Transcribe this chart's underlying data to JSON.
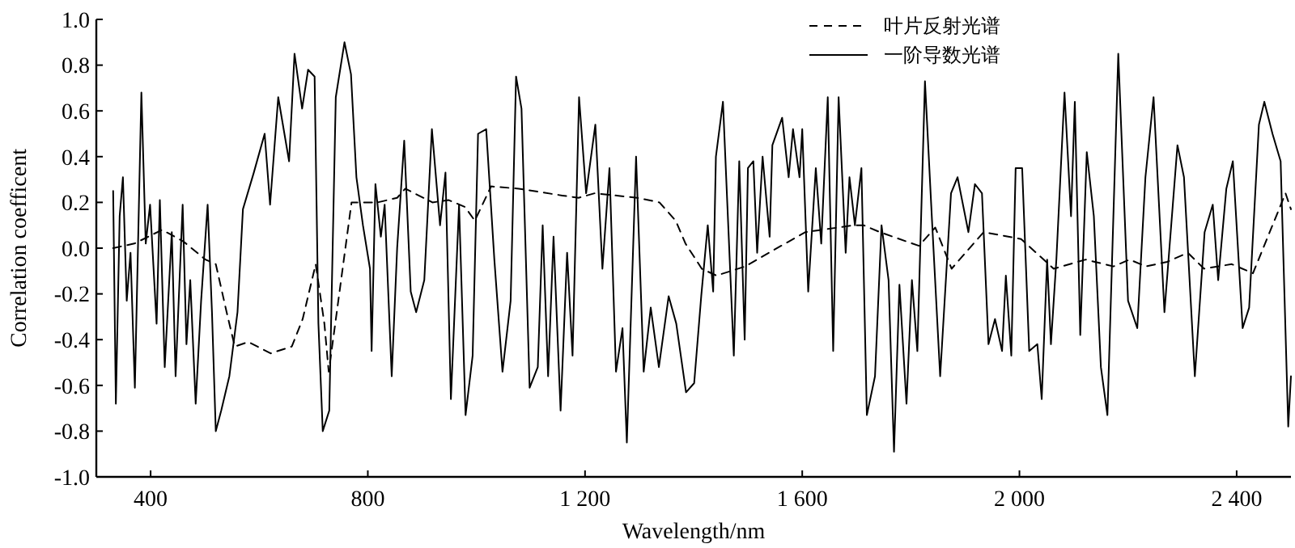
{
  "chart_data": {
    "type": "line",
    "xlabel": "Wavelength/nm",
    "ylabel": "Correlation coefficent",
    "xlim": [
      300,
      2500
    ],
    "xticks": [
      {
        "value": 400,
        "label": "400"
      },
      {
        "value": 800,
        "label": "800"
      },
      {
        "value": 1200,
        "label": "1 200"
      },
      {
        "value": 1600,
        "label": "1 600"
      },
      {
        "value": 2000,
        "label": "2 000"
      },
      {
        "value": 2400,
        "label": "2 400"
      }
    ],
    "ylim": [
      -1,
      1
    ],
    "yticks": [
      {
        "value": -1,
        "label": "-1.0"
      },
      {
        "value": -0.8,
        "label": "-0.8"
      },
      {
        "value": -0.6,
        "label": "-0.6"
      },
      {
        "value": -0.4,
        "label": "-0.4"
      },
      {
        "value": -0.2,
        "label": "-0.2"
      },
      {
        "value": 0,
        "label": "0.0"
      },
      {
        "value": 0.2,
        "label": "0.2"
      },
      {
        "value": 0.4,
        "label": "0.4"
      },
      {
        "value": 0.6,
        "label": "0.6"
      },
      {
        "value": 0.8,
        "label": "0.8"
      },
      {
        "value": 1,
        "label": "1.0"
      }
    ],
    "grid": false,
    "legend": "top right",
    "series": [
      {
        "name": "叶片反射光谱",
        "color": "#000000",
        "line_style": "dashed",
        "x": [
          331,
          370,
          421,
          460,
          501,
          520,
          540,
          555,
          580,
          621,
          660,
          680,
          704,
          720,
          728,
          740,
          770,
          818,
          854,
          869,
          919,
          949,
          979,
          997,
          1027,
          1078,
          1158,
          1188,
          1218,
          1296,
          1337,
          1367,
          1385,
          1415,
          1442,
          1495,
          1546,
          1606,
          1695,
          1713,
          1743,
          1815,
          1845,
          1875,
          1934,
          2003,
          2063,
          2122,
          2173,
          2203,
          2233,
          2272,
          2310,
          2340,
          2391,
          2430,
          2490,
          2500
        ],
        "values": [
          0.0,
          0.02,
          0.08,
          0.03,
          -0.05,
          -0.07,
          -0.28,
          -0.43,
          -0.41,
          -0.46,
          -0.43,
          -0.31,
          -0.07,
          -0.33,
          -0.54,
          -0.33,
          0.2,
          0.2,
          0.22,
          0.26,
          0.2,
          0.21,
          0.18,
          0.12,
          0.27,
          0.26,
          0.23,
          0.22,
          0.24,
          0.22,
          0.2,
          0.12,
          0.02,
          -0.09,
          -0.12,
          -0.08,
          -0.01,
          0.07,
          0.1,
          0.1,
          0.07,
          0.01,
          0.09,
          -0.09,
          0.07,
          0.04,
          -0.09,
          -0.05,
          -0.08,
          -0.05,
          -0.08,
          -0.06,
          -0.02,
          -0.09,
          -0.07,
          -0.11,
          0.24,
          0.17
        ]
      },
      {
        "name": "一阶导数光谱",
        "color": "#000000",
        "line_style": "solid",
        "x": [
          331,
          336,
          343,
          349,
          356,
          363,
          371,
          383,
          391,
          399,
          411,
          417,
          426,
          439,
          446,
          459,
          466,
          473,
          483,
          493,
          505,
          513,
          520,
          530,
          545,
          560,
          570,
          590,
          610,
          620,
          635,
          655,
          665,
          679,
          690,
          702,
          709,
          717,
          729,
          741,
          757,
          769,
          779,
          791,
          804,
          807,
          814,
          824,
          831,
          844,
          854,
          867,
          879,
          889,
          904,
          918,
          933,
          943,
          953,
          968,
          980,
          993,
          1003,
          1018,
          1033,
          1048,
          1063,
          1073,
          1083,
          1098,
          1113,
          1122,
          1132,
          1142,
          1155,
          1167,
          1177,
          1189,
          1202,
          1219,
          1232,
          1245,
          1257,
          1269,
          1277,
          1294,
          1308,
          1321,
          1336,
          1354,
          1368,
          1386,
          1401,
          1414,
          1426,
          1436,
          1441,
          1454,
          1474,
          1484,
          1494,
          1500,
          1510,
          1517,
          1527,
          1540,
          1545,
          1563,
          1575,
          1583,
          1595,
          1600,
          1611,
          1625,
          1635,
          1647,
          1657,
          1667,
          1680,
          1687,
          1697,
          1709,
          1719,
          1734,
          1746,
          1759,
          1769,
          1779,
          1792,
          1802,
          1812,
          1826,
          1839,
          1854,
          1874,
          1886,
          1906,
          1918,
          1931,
          1943,
          1955,
          1968,
          1975,
          1985,
          1993,
          2005,
          2018,
          2033,
          2041,
          2051,
          2058,
          2068,
          2083,
          2095,
          2102,
          2112,
          2124,
          2137,
          2150,
          2162,
          2182,
          2200,
          2217,
          2232,
          2247,
          2267,
          2291,
          2303,
          2323,
          2341,
          2356,
          2366,
          2381,
          2393,
          2411,
          2423,
          2441,
          2451,
          2466,
          2481,
          2495,
          2500
        ],
        "values": [
          0.25,
          -0.68,
          0.14,
          0.31,
          -0.23,
          -0.02,
          -0.61,
          0.68,
          0.02,
          0.19,
          -0.33,
          0.21,
          -0.52,
          0.07,
          -0.56,
          0.19,
          -0.42,
          -0.14,
          -0.68,
          -0.23,
          0.19,
          -0.28,
          -0.8,
          -0.71,
          -0.56,
          -0.28,
          0.17,
          0.33,
          0.5,
          0.19,
          0.66,
          0.38,
          0.85,
          0.61,
          0.78,
          0.75,
          -0.33,
          -0.8,
          -0.71,
          0.66,
          0.9,
          0.76,
          0.31,
          0.1,
          -0.09,
          -0.45,
          0.28,
          0.05,
          0.19,
          -0.56,
          0,
          0.47,
          -0.19,
          -0.28,
          -0.14,
          0.52,
          0.1,
          0.33,
          -0.66,
          0.19,
          -0.73,
          -0.47,
          0.5,
          0.52,
          -0.05,
          -0.54,
          -0.23,
          0.75,
          0.61,
          -0.61,
          -0.52,
          0.1,
          -0.56,
          0.05,
          -0.71,
          -0.02,
          -0.47,
          0.66,
          0.24,
          0.54,
          -0.09,
          0.35,
          -0.54,
          -0.35,
          -0.85,
          0.4,
          -0.54,
          -0.26,
          -0.52,
          -0.21,
          -0.33,
          -0.63,
          -0.59,
          -0.21,
          0.1,
          -0.19,
          0.4,
          0.64,
          -0.47,
          0.38,
          -0.4,
          0.35,
          0.38,
          -0.02,
          0.4,
          0.05,
          0.45,
          0.57,
          0.31,
          0.52,
          0.31,
          0.52,
          -0.19,
          0.35,
          0.02,
          0.66,
          -0.45,
          0.66,
          -0.02,
          0.31,
          0.1,
          0.35,
          -0.73,
          -0.56,
          0.1,
          -0.14,
          -0.89,
          -0.16,
          -0.68,
          -0.14,
          -0.45,
          0.73,
          0.12,
          -0.56,
          0.24,
          0.31,
          0.07,
          0.28,
          0.24,
          -0.42,
          -0.31,
          -0.45,
          -0.12,
          -0.47,
          0.35,
          0.35,
          -0.45,
          -0.42,
          -0.66,
          -0.05,
          -0.42,
          -0.05,
          0.68,
          0.14,
          0.64,
          -0.38,
          0.42,
          0.14,
          -0.52,
          -0.73,
          0.85,
          -0.23,
          -0.35,
          0.31,
          0.66,
          -0.28,
          0.45,
          0.31,
          -0.56,
          0.07,
          0.19,
          -0.14,
          0.26,
          0.38,
          -0.35,
          -0.26,
          0.54,
          0.64,
          0.5,
          0.38,
          -0.78,
          -0.56
        ]
      }
    ]
  }
}
